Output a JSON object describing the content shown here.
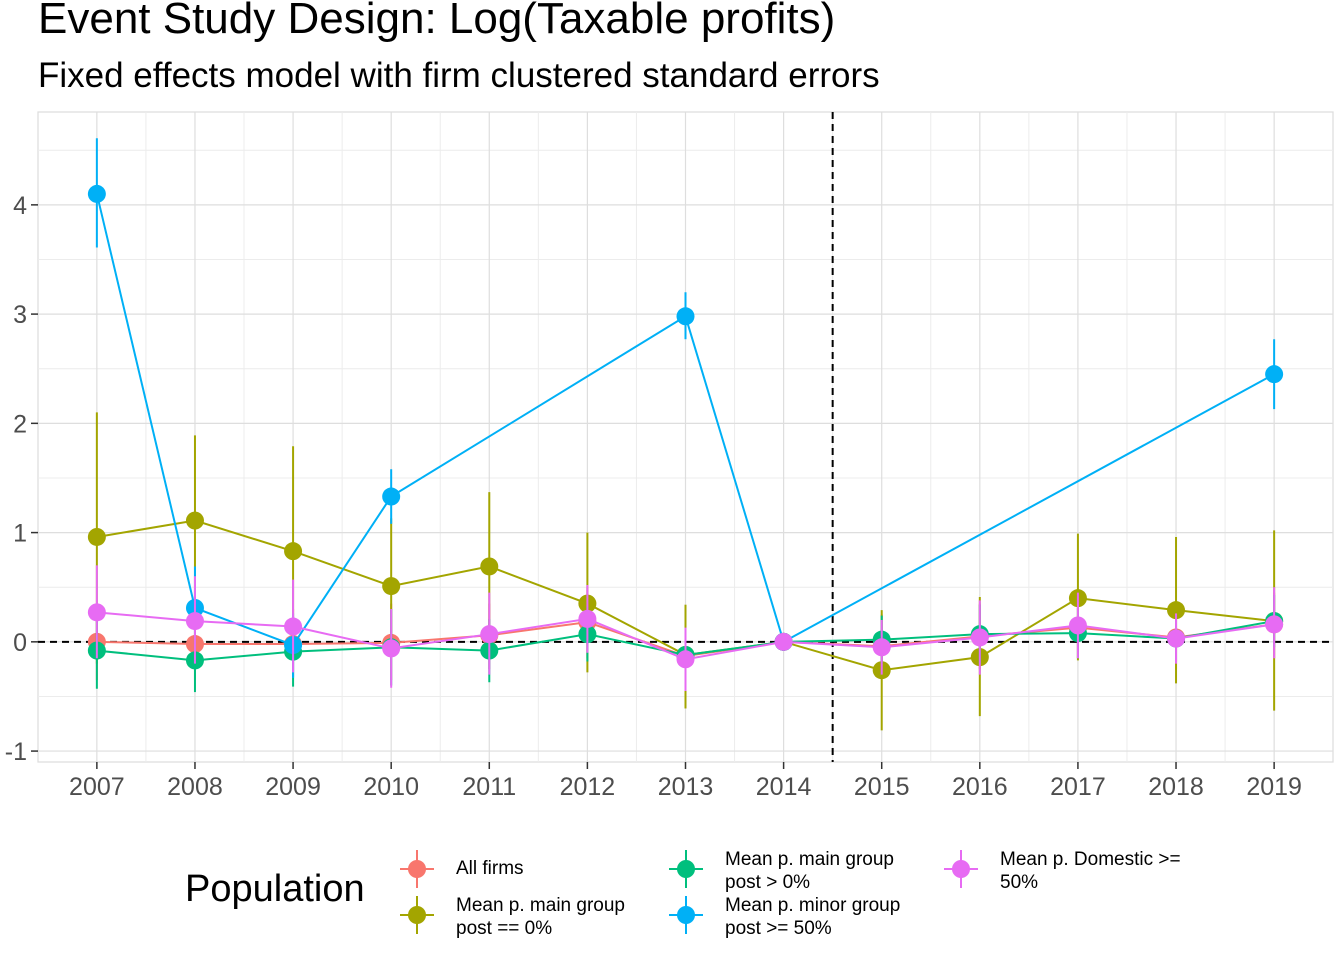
{
  "title": "Event Study Design: Log(Taxable profits)",
  "subtitle": "Fixed effects model with firm clustered standard errors",
  "legend_title": "Population",
  "chart_data": {
    "type": "line",
    "title": "Event Study Design: Log(Taxable profits)",
    "subtitle": "Fixed effects model with firm clustered standard errors",
    "xlabel": "",
    "ylabel": "",
    "x": [
      2007,
      2008,
      2009,
      2010,
      2011,
      2012,
      2013,
      2014,
      2015,
      2016,
      2017,
      2018,
      2019
    ],
    "x_tick_labels": [
      "2007",
      "2008",
      "2009",
      "2010",
      "2011",
      "2012",
      "2013",
      "2014",
      "2015",
      "2016",
      "2017",
      "2018",
      "2019"
    ],
    "y_ticks": [
      -1,
      0,
      1,
      2,
      3,
      4
    ],
    "y_tick_labels": [
      "-1",
      "0",
      "1",
      "2",
      "3",
      "4"
    ],
    "xlim": [
      2006.4,
      2019.6
    ],
    "ylim": [
      -1.1,
      4.85
    ],
    "grid": true,
    "hline_y": 0,
    "vline_x": 2014.5,
    "legend_position": "bottom",
    "error_bars": true,
    "series": [
      {
        "name": "All firms",
        "color": "#F8766D",
        "values": [
          0.0,
          -0.02,
          -0.02,
          -0.01,
          0.06,
          0.18,
          -0.13,
          0.0,
          -0.04,
          0.05,
          0.13,
          0.04,
          0.16
        ],
        "lower": [
          -0.35,
          -0.35,
          -0.32,
          -0.35,
          -0.25,
          -0.15,
          -0.45,
          0.0,
          -0.3,
          -0.25,
          -0.15,
          -0.25,
          -0.15
        ],
        "upper": [
          0.35,
          0.35,
          0.3,
          0.35,
          0.35,
          0.5,
          0.2,
          0.0,
          0.25,
          0.35,
          0.4,
          0.3,
          0.45
        ]
      },
      {
        "name": "Mean p. main group\npost == 0%",
        "color": "#A3A500",
        "values": [
          0.96,
          1.11,
          0.83,
          0.51,
          0.69,
          0.35,
          -0.12,
          0.0,
          -0.26,
          -0.14,
          0.4,
          0.29,
          0.19
        ],
        "lower": [
          -0.2,
          0.35,
          -0.15,
          -0.1,
          0.0,
          -0.28,
          -0.61,
          0.0,
          -0.81,
          -0.68,
          -0.17,
          -0.38,
          -0.63
        ],
        "upper": [
          2.1,
          1.89,
          1.79,
          1.13,
          1.37,
          1.0,
          0.34,
          0.0,
          0.29,
          0.41,
          0.99,
          0.96,
          1.02
        ]
      },
      {
        "name": "Mean p. main group\npost > 0%",
        "color": "#00BF7D",
        "values": [
          -0.08,
          -0.17,
          -0.09,
          -0.05,
          -0.08,
          0.07,
          -0.12,
          0.0,
          0.02,
          0.07,
          0.08,
          0.03,
          0.19
        ],
        "lower": [
          -0.43,
          -0.46,
          -0.41,
          -0.4,
          -0.37,
          -0.18,
          -0.33,
          0.0,
          -0.2,
          -0.2,
          -0.15,
          -0.18,
          -0.05
        ],
        "upper": [
          0.27,
          0.12,
          0.23,
          0.3,
          0.21,
          0.32,
          0.09,
          0.0,
          0.24,
          0.34,
          0.31,
          0.24,
          0.43
        ]
      },
      {
        "name": "Mean p. minor group\npost >= 50%",
        "color": "#00B0F6",
        "values": [
          4.1,
          0.31,
          -0.03,
          1.33,
          null,
          null,
          2.98,
          0.0,
          null,
          null,
          null,
          null,
          2.45
        ],
        "lower": [
          3.61,
          -0.02,
          -0.33,
          1.08,
          null,
          null,
          2.77,
          0.0,
          null,
          null,
          null,
          null,
          2.13
        ],
        "upper": [
          4.61,
          0.69,
          0.26,
          1.58,
          null,
          null,
          3.2,
          0.0,
          null,
          null,
          null,
          null,
          2.77
        ]
      },
      {
        "name": "Mean p. Domestic >=\n50%",
        "color": "#E76BF3",
        "values": [
          0.27,
          0.19,
          0.14,
          -0.06,
          0.07,
          0.21,
          -0.16,
          0.0,
          -0.05,
          0.04,
          0.15,
          0.03,
          0.16
        ],
        "lower": [
          -0.15,
          -0.2,
          -0.28,
          -0.42,
          -0.3,
          -0.1,
          -0.45,
          0.0,
          -0.3,
          -0.3,
          -0.15,
          -0.2,
          -0.15
        ],
        "upper": [
          0.7,
          0.6,
          0.57,
          0.3,
          0.45,
          0.52,
          0.13,
          0.0,
          0.2,
          0.38,
          0.45,
          0.26,
          0.5
        ]
      }
    ]
  }
}
